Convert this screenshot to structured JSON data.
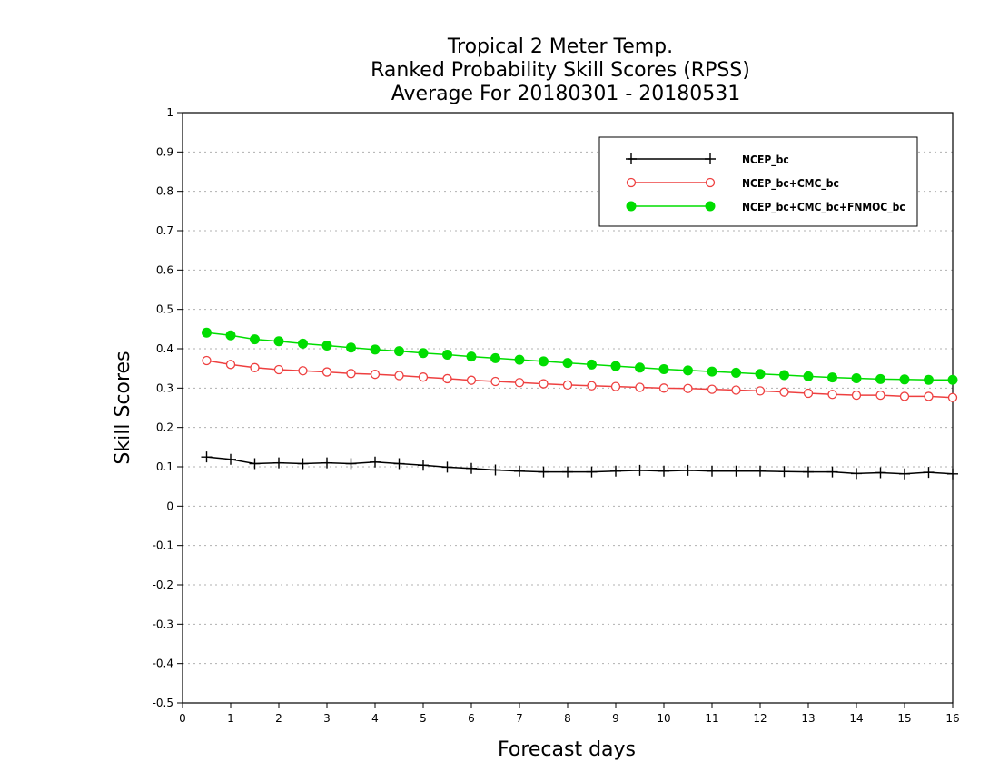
{
  "chart_data": {
    "type": "line",
    "title": [
      "Tropical 2 Meter Temp.",
      "Ranked Probability Skill Scores (RPSS)",
      "Average For 20180301 - 20180531"
    ],
    "xlabel": "Forecast days",
    "ylabel": "Skill Scores",
    "xlim": [
      0,
      16
    ],
    "ylim": [
      -0.5,
      1
    ],
    "xticks": [
      "0",
      "1",
      "2",
      "3",
      "4",
      "5",
      "6",
      "7",
      "8",
      "9",
      "10",
      "11",
      "12",
      "13",
      "14",
      "15",
      "16"
    ],
    "yticks": [
      "1",
      "0.9",
      "0.8",
      "0.7",
      "0.6",
      "0.5",
      "0.4",
      "0.3",
      "0.2",
      "0.1",
      "0",
      "-0.1",
      "-0.2",
      "-0.3",
      "-0.4",
      "-0.5"
    ],
    "grid": "horizontal dotted",
    "legend_position": "top-right",
    "x": [
      0.5,
      1,
      1.5,
      2,
      2.5,
      3,
      3.5,
      4,
      4.5,
      5,
      5.5,
      6,
      6.5,
      7,
      7.5,
      8,
      8.5,
      9,
      9.5,
      10,
      10.5,
      11,
      11.5,
      12,
      12.5,
      13,
      13.5,
      14,
      14.5,
      15,
      15.5,
      16
    ],
    "series": [
      {
        "name": "NCEP_bc",
        "color": "#000000",
        "marker": "plus",
        "values": [
          0.125,
          0.119,
          0.108,
          0.11,
          0.108,
          0.11,
          0.108,
          0.112,
          0.108,
          0.104,
          0.099,
          0.096,
          0.092,
          0.089,
          0.087,
          0.087,
          0.087,
          0.089,
          0.091,
          0.089,
          0.091,
          0.089,
          0.089,
          0.089,
          0.088,
          0.087,
          0.087,
          0.083,
          0.085,
          0.082,
          0.086,
          0.082
        ]
      },
      {
        "name": "NCEP_bc+CMC_bc",
        "color": "#ee4040",
        "marker": "open-circle",
        "values": [
          0.37,
          0.36,
          0.352,
          0.347,
          0.344,
          0.341,
          0.337,
          0.335,
          0.332,
          0.328,
          0.324,
          0.32,
          0.317,
          0.314,
          0.311,
          0.308,
          0.306,
          0.304,
          0.302,
          0.3,
          0.299,
          0.297,
          0.295,
          0.293,
          0.29,
          0.287,
          0.284,
          0.282,
          0.282,
          0.279,
          0.279,
          0.276
        ]
      },
      {
        "name": "NCEP_bc+CMC_bc+FNMOC_bc",
        "color": "#00dd00",
        "marker": "filled-circle",
        "values": [
          0.441,
          0.434,
          0.424,
          0.419,
          0.413,
          0.408,
          0.403,
          0.398,
          0.394,
          0.389,
          0.385,
          0.38,
          0.376,
          0.372,
          0.368,
          0.364,
          0.36,
          0.356,
          0.352,
          0.348,
          0.345,
          0.342,
          0.339,
          0.336,
          0.333,
          0.33,
          0.327,
          0.325,
          0.323,
          0.322,
          0.321,
          0.321
        ]
      }
    ]
  }
}
